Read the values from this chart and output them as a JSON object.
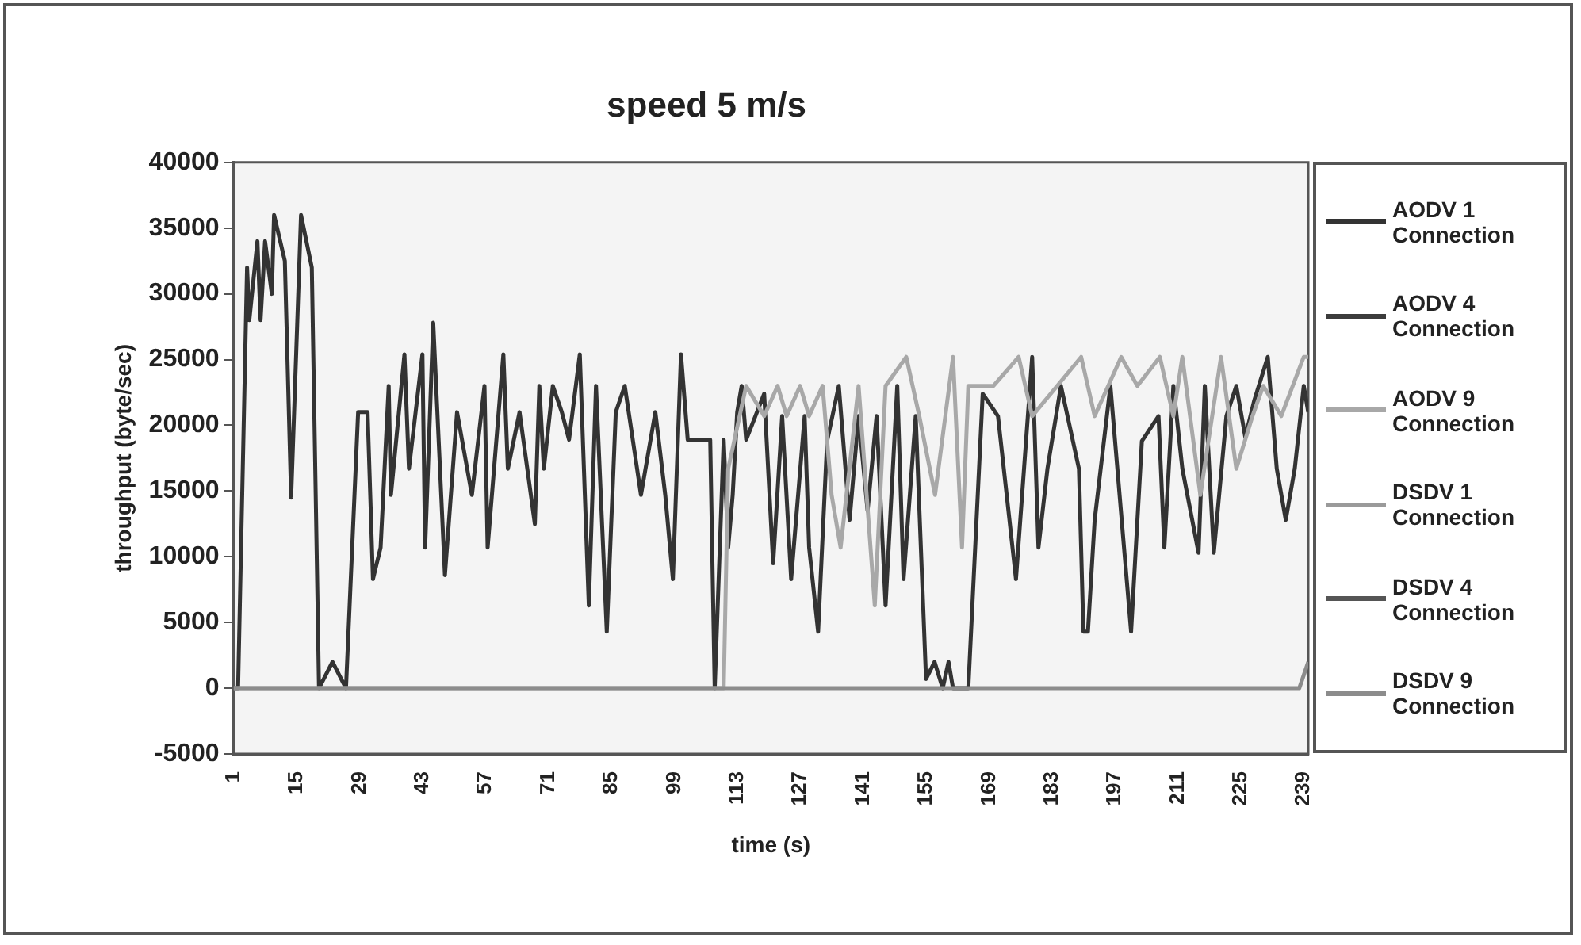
{
  "chart_data": {
    "type": "line",
    "title": "speed 5 m/s",
    "xlabel": "time (s)",
    "ylabel": "throughput (byte/sec)",
    "xlim": [
      1,
      240
    ],
    "xticks": [
      1,
      15,
      29,
      43,
      57,
      71,
      85,
      99,
      113,
      127,
      141,
      155,
      169,
      183,
      197,
      211,
      225,
      239
    ],
    "ylim": [
      -5000,
      40000
    ],
    "yticks": [
      -5000,
      0,
      5000,
      10000,
      15000,
      20000,
      25000,
      30000,
      35000,
      40000
    ],
    "legend": "right",
    "marker": "none",
    "line_style": "solid",
    "series": [
      {
        "name": "AODV 1 Connection",
        "color": "#333333",
        "x": [
          1,
          2,
          4,
          4.5,
          6.3,
          7,
          8,
          9.5,
          10,
          12.4,
          13.8,
          16,
          18.4,
          20,
          23,
          26,
          28.7,
          30.8,
          32,
          33.7,
          35.5,
          36,
          39,
          40,
          43,
          43.6,
          45.4,
          48,
          50.7,
          54,
          56.8,
          57.5,
          61,
          62,
          64.6,
          68,
          69,
          70,
          72,
          74,
          75.6,
          78,
          80,
          81.6,
          84,
          86,
          88,
          91.6,
          94.8,
          97,
          98.7,
          100.5,
          102,
          107,
          108,
          110,
          111,
          112,
          113,
          114,
          115,
          119,
          121,
          123,
          125,
          128,
          129,
          131,
          133,
          135.6,
          138,
          140,
          142,
          144,
          146,
          148.6,
          150,
          152.7,
          155,
          156.9,
          158.7,
          160,
          161,
          164.4,
          167.6,
          171,
          175,
          178.6,
          180,
          182,
          185,
          189,
          190,
          191,
          192.5,
          196,
          200.6,
          203,
          206.7,
          208,
          210,
          212,
          215.6,
          217,
          219,
          221.8,
          224,
          226,
          228,
          231,
          233,
          235,
          237,
          239,
          240
        ],
        "values": [
          0,
          0,
          32000,
          28000,
          34000,
          28000,
          34000,
          30000,
          36000,
          32500,
          14500,
          36000,
          32000,
          0,
          2000,
          0,
          21000,
          21000,
          8300,
          10700,
          23000,
          14700,
          25400,
          16700,
          25400,
          10700,
          27800,
          8600,
          21000,
          14700,
          23000,
          10700,
          25400,
          16700,
          21000,
          12500,
          23000,
          16700,
          23000,
          21000,
          18900,
          25400,
          6300,
          23000,
          4300,
          21000,
          23000,
          14700,
          21000,
          14700,
          8300,
          25400,
          18900,
          18900,
          0,
          18900,
          10700,
          14700,
          21000,
          23000,
          18900,
          22400,
          9500,
          20700,
          8300,
          20700,
          10700,
          4300,
          18800,
          23000,
          12800,
          20700,
          13500,
          20700,
          6300,
          23000,
          8300,
          20700,
          700,
          2000,
          0,
          2000,
          0,
          0,
          22400,
          20700,
          8300,
          25200,
          10700,
          16700,
          23000,
          16700,
          4300,
          4300,
          12800,
          23000,
          4300,
          18800,
          20700,
          10700,
          23000,
          16700,
          10300,
          23000,
          10300,
          20700,
          23000,
          19100,
          21900,
          25200,
          16700,
          12800,
          16700,
          23000,
          21000
        ]
      },
      {
        "name": "AODV 4 Connection",
        "color": "#3c3c3c"
      },
      {
        "name": "AODV 9 Connection",
        "color": "#a8a8a8",
        "x": [
          1,
          110,
          111,
          115,
          119,
          122,
          124,
          127,
          129,
          132,
          134,
          136,
          140,
          143.6,
          146,
          150.6,
          153.5,
          157,
          161,
          163,
          164.4,
          170,
          175.6,
          178.6,
          189.5,
          192.5,
          198.4,
          202,
          207,
          210,
          212,
          216,
          220.6,
          224,
          227.6,
          230,
          234,
          239,
          240
        ],
        "values": [
          0,
          0,
          16700,
          23000,
          20700,
          23000,
          20700,
          23000,
          20700,
          23000,
          14700,
          10700,
          23000,
          6300,
          23000,
          25200,
          20700,
          14700,
          25200,
          10700,
          23000,
          23000,
          25200,
          20700,
          25200,
          20700,
          25200,
          23000,
          25200,
          20700,
          25200,
          14700,
          25200,
          16700,
          20700,
          23000,
          20700,
          25200,
          25200
        ]
      },
      {
        "name": "DSDV 1 Connection",
        "color": "#9a9a9a"
      },
      {
        "name": "DSDV 4 Connection",
        "color": "#555555"
      },
      {
        "name": "DSDV 9 Connection",
        "color": "#8c8c8c",
        "x": [
          1,
          238,
          240
        ],
        "values": [
          0,
          0,
          2000
        ]
      }
    ]
  }
}
